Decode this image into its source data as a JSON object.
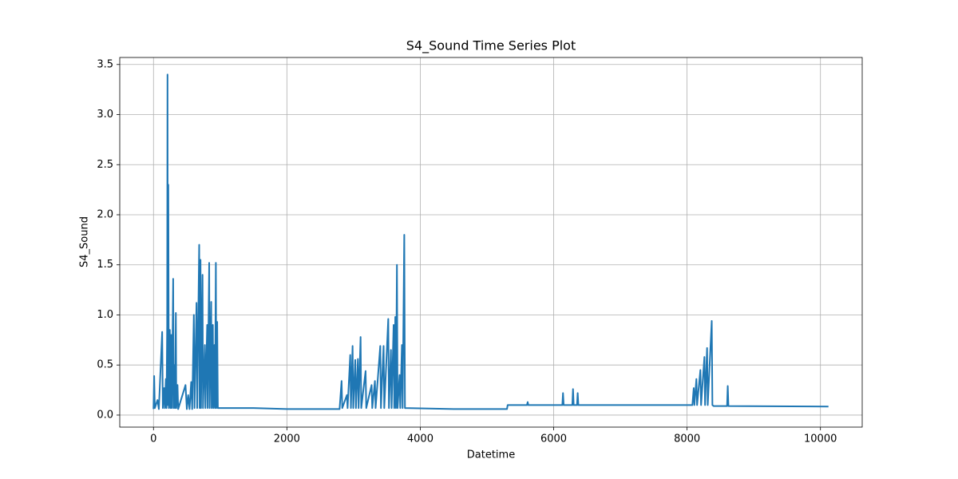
{
  "chart_data": {
    "type": "line",
    "title": "S4_Sound Time Series Plot",
    "x_label": "Datetime",
    "y_label": "S4_Sound",
    "x": [
      0,
      10,
      20,
      60,
      80,
      130,
      140,
      160,
      170,
      185,
      195,
      205,
      210,
      215,
      222,
      230,
      245,
      255,
      265,
      275,
      295,
      302,
      315,
      322,
      335,
      342,
      360,
      370,
      480,
      500,
      520,
      540,
      565,
      580,
      605,
      615,
      645,
      655,
      685,
      692,
      705,
      712,
      735,
      742,
      770,
      778,
      805,
      812,
      835,
      842,
      865,
      872,
      890,
      897,
      915,
      922,
      935,
      942,
      955,
      965,
      1500,
      2000,
      2500,
      2790,
      2820,
      2830,
      2900,
      2910,
      2950,
      2960,
      2985,
      2995,
      3025,
      3035,
      3065,
      3075,
      3105,
      3115,
      3180,
      3190,
      3270,
      3280,
      3320,
      3330,
      3400,
      3410,
      3450,
      3460,
      3520,
      3530,
      3560,
      3570,
      3600,
      3610,
      3625,
      3635,
      3650,
      3660,
      3690,
      3700,
      3725,
      3735,
      3760,
      3770,
      4500,
      5300,
      5310,
      5600,
      5610,
      5620,
      6130,
      6140,
      6150,
      6280,
      6290,
      6300,
      6350,
      6360,
      6370,
      8080,
      8100,
      8110,
      8140,
      8150,
      8200,
      8210,
      8260,
      8270,
      8300,
      8310,
      8370,
      8380,
      8400,
      8600,
      8610,
      8620,
      10120
    ],
    "series": [
      {
        "name": "S4_Sound",
        "color": "#1f77b4",
        "values": [
          0.06,
          0.39,
          0.07,
          0.15,
          0.06,
          0.83,
          0.07,
          0.27,
          0.07,
          0.36,
          0.07,
          0.9,
          3.4,
          0.1,
          2.3,
          0.07,
          0.85,
          0.07,
          0.8,
          0.07,
          1.36,
          0.07,
          0.5,
          0.07,
          1.02,
          0.07,
          0.3,
          0.06,
          0.3,
          0.06,
          0.2,
          0.06,
          0.33,
          0.06,
          1.0,
          0.07,
          1.12,
          0.07,
          1.7,
          0.07,
          1.55,
          0.07,
          1.4,
          0.07,
          0.7,
          0.07,
          0.9,
          0.07,
          1.52,
          0.07,
          1.13,
          0.07,
          0.9,
          0.07,
          0.7,
          0.07,
          1.52,
          0.07,
          0.93,
          0.07,
          0.07,
          0.06,
          0.06,
          0.06,
          0.34,
          0.07,
          0.2,
          0.07,
          0.6,
          0.07,
          0.69,
          0.07,
          0.55,
          0.07,
          0.56,
          0.07,
          0.78,
          0.07,
          0.44,
          0.07,
          0.3,
          0.07,
          0.34,
          0.07,
          0.69,
          0.07,
          0.69,
          0.07,
          0.96,
          0.07,
          0.65,
          0.07,
          0.9,
          0.07,
          0.98,
          0.07,
          1.5,
          0.07,
          0.4,
          0.07,
          0.7,
          0.07,
          1.8,
          0.07,
          0.06,
          0.06,
          0.1,
          0.1,
          0.13,
          0.1,
          0.1,
          0.22,
          0.1,
          0.1,
          0.26,
          0.1,
          0.1,
          0.22,
          0.1,
          0.1,
          0.27,
          0.1,
          0.36,
          0.1,
          0.45,
          0.1,
          0.58,
          0.1,
          0.67,
          0.1,
          0.94,
          0.1,
          0.09,
          0.09,
          0.29,
          0.09,
          0.085
        ]
      }
    ],
    "xlim": [
      -506,
      10626
    ],
    "ylim": [
      -0.12,
      3.57
    ],
    "xticks": [
      0,
      2000,
      4000,
      6000,
      8000,
      10000
    ],
    "yticks": [
      {
        "value": 0,
        "label": "0.0"
      },
      0.5,
      {
        "value": 1,
        "label": "1.0"
      },
      1.5,
      {
        "value": 2,
        "label": "2.0"
      },
      2.5,
      {
        "value": 3,
        "label": "3.0"
      },
      3.5
    ],
    "grid": true
  }
}
